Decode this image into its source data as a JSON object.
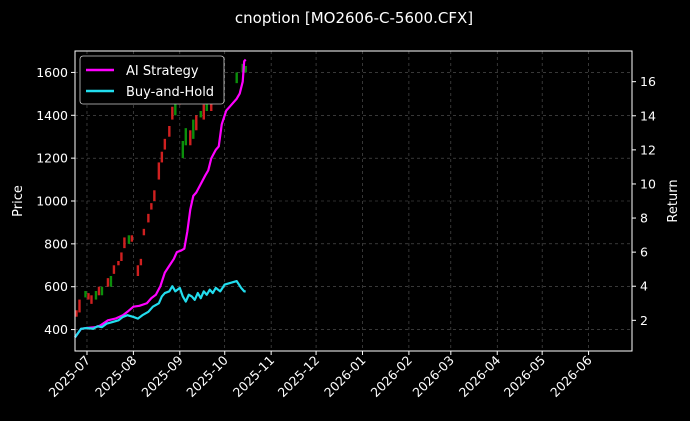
{
  "chart_data": {
    "type": "line",
    "title": "cnoption [MO2606-C-5600.CFX]",
    "ylabel_left": "Price",
    "ylabel_right": "Return",
    "xlim": [
      "2025-06-23",
      "2026-06-30"
    ],
    "ylim_left": [
      300,
      1700
    ],
    "ylim_right": [
      0.2,
      17.8
    ],
    "x_ticks": [
      "2025-07",
      "2025-08",
      "2025-09",
      "2025-10",
      "2025-11",
      "2025-12",
      "2026-01",
      "2026-02",
      "2026-03",
      "2026-04",
      "2026-05",
      "2026-06"
    ],
    "y_ticks_left": [
      400,
      600,
      800,
      1000,
      1200,
      1400,
      1600
    ],
    "y_ticks_right": [
      2,
      4,
      6,
      8,
      10,
      12,
      14,
      16
    ],
    "grid": true,
    "legend_position": "top-left",
    "series": [
      {
        "name": "AI Strategy",
        "color": "#ff00ff",
        "axis": "right",
        "points": [
          [
            "2025-06-23",
            1.0
          ],
          [
            "2025-06-27",
            1.5
          ],
          [
            "2025-07-01",
            1.55
          ],
          [
            "2025-07-07",
            1.6
          ],
          [
            "2025-07-10",
            1.7
          ],
          [
            "2025-07-15",
            2.0
          ],
          [
            "2025-07-20",
            2.1
          ],
          [
            "2025-07-25",
            2.3
          ],
          [
            "2025-07-28",
            2.5
          ],
          [
            "2025-08-01",
            2.8
          ],
          [
            "2025-08-05",
            2.85
          ],
          [
            "2025-08-10",
            3.0
          ],
          [
            "2025-08-13",
            3.3
          ],
          [
            "2025-08-16",
            3.5
          ],
          [
            "2025-08-19",
            4.0
          ],
          [
            "2025-08-22",
            4.8
          ],
          [
            "2025-08-25",
            5.2
          ],
          [
            "2025-08-28",
            5.6
          ],
          [
            "2025-08-30",
            6.0
          ],
          [
            "2025-09-02",
            6.1
          ],
          [
            "2025-09-04",
            6.2
          ],
          [
            "2025-09-06",
            7.2
          ],
          [
            "2025-09-08",
            8.5
          ],
          [
            "2025-09-10",
            9.3
          ],
          [
            "2025-09-12",
            9.5
          ],
          [
            "2025-09-15",
            10.0
          ],
          [
            "2025-09-18",
            10.5
          ],
          [
            "2025-09-20",
            10.8
          ],
          [
            "2025-09-22",
            11.5
          ],
          [
            "2025-09-25",
            12.0
          ],
          [
            "2025-09-27",
            12.2
          ],
          [
            "2025-09-29",
            13.5
          ],
          [
            "2025-10-02",
            14.3
          ],
          [
            "2025-10-05",
            14.6
          ],
          [
            "2025-10-09",
            15.0
          ],
          [
            "2025-10-11",
            15.3
          ],
          [
            "2025-10-13",
            16.0
          ],
          [
            "2025-10-14",
            17.2
          ],
          [
            "2025-10-15",
            17.3
          ]
        ]
      },
      {
        "name": "Buy-and-Hold",
        "color": "#22ddee",
        "axis": "right",
        "points": [
          [
            "2025-06-23",
            1.0
          ],
          [
            "2025-06-27",
            1.5
          ],
          [
            "2025-07-01",
            1.55
          ],
          [
            "2025-07-05",
            1.5
          ],
          [
            "2025-07-08",
            1.65
          ],
          [
            "2025-07-11",
            1.6
          ],
          [
            "2025-07-14",
            1.8
          ],
          [
            "2025-07-18",
            1.9
          ],
          [
            "2025-07-22",
            2.0
          ],
          [
            "2025-07-25",
            2.2
          ],
          [
            "2025-07-28",
            2.3
          ],
          [
            "2025-08-01",
            2.2
          ],
          [
            "2025-08-04",
            2.1
          ],
          [
            "2025-08-07",
            2.3
          ],
          [
            "2025-08-11",
            2.5
          ],
          [
            "2025-08-14",
            2.8
          ],
          [
            "2025-08-18",
            3.0
          ],
          [
            "2025-08-20",
            3.4
          ],
          [
            "2025-08-22",
            3.6
          ],
          [
            "2025-08-25",
            3.7
          ],
          [
            "2025-08-27",
            4.0
          ],
          [
            "2025-08-29",
            3.7
          ],
          [
            "2025-09-01",
            3.9
          ],
          [
            "2025-09-03",
            3.4
          ],
          [
            "2025-09-05",
            3.1
          ],
          [
            "2025-09-07",
            3.5
          ],
          [
            "2025-09-09",
            3.4
          ],
          [
            "2025-09-11",
            3.2
          ],
          [
            "2025-09-13",
            3.6
          ],
          [
            "2025-09-15",
            3.3
          ],
          [
            "2025-09-17",
            3.7
          ],
          [
            "2025-09-19",
            3.5
          ],
          [
            "2025-09-21",
            3.8
          ],
          [
            "2025-09-23",
            3.6
          ],
          [
            "2025-09-25",
            3.9
          ],
          [
            "2025-09-28",
            3.7
          ],
          [
            "2025-10-01",
            4.1
          ],
          [
            "2025-10-05",
            4.2
          ],
          [
            "2025-10-09",
            4.3
          ],
          [
            "2025-10-12",
            3.9
          ],
          [
            "2025-10-14",
            3.7
          ],
          [
            "2025-10-15",
            3.7
          ]
        ]
      }
    ],
    "candles": {
      "axis": "left",
      "up_color": "#0b8f0b",
      "down_color": "#d02020",
      "bars": [
        [
          "2025-06-24",
          490,
          460
        ],
        [
          "2025-06-26",
          540,
          480
        ],
        [
          "2025-06-30",
          550,
          580
        ],
        [
          "2025-07-02",
          570,
          540
        ],
        [
          "2025-07-04",
          560,
          520
        ],
        [
          "2025-07-07",
          540,
          580
        ],
        [
          "2025-07-09",
          600,
          560
        ],
        [
          "2025-07-11",
          560,
          600
        ],
        [
          "2025-07-15",
          640,
          600
        ],
        [
          "2025-07-17",
          600,
          650
        ],
        [
          "2025-07-19",
          700,
          660
        ],
        [
          "2025-07-22",
          720,
          700
        ],
        [
          "2025-07-24",
          760,
          720
        ],
        [
          "2025-07-26",
          830,
          780
        ],
        [
          "2025-07-29",
          800,
          840
        ],
        [
          "2025-07-31",
          840,
          810
        ],
        [
          "2025-08-04",
          700,
          650
        ],
        [
          "2025-08-06",
          730,
          700
        ],
        [
          "2025-08-08",
          870,
          840
        ],
        [
          "2025-08-11",
          940,
          900
        ],
        [
          "2025-08-13",
          990,
          960
        ],
        [
          "2025-08-15",
          1050,
          1000
        ],
        [
          "2025-08-18",
          1180,
          1100
        ],
        [
          "2025-08-20",
          1230,
          1180
        ],
        [
          "2025-08-22",
          1290,
          1240
        ],
        [
          "2025-08-25",
          1350,
          1300
        ],
        [
          "2025-08-27",
          1440,
          1380
        ],
        [
          "2025-08-29",
          1400,
          1480
        ],
        [
          "2025-09-01",
          1530,
          1450
        ],
        [
          "2025-09-03",
          1200,
          1280
        ],
        [
          "2025-09-05",
          1260,
          1340
        ],
        [
          "2025-09-08",
          1330,
          1260
        ],
        [
          "2025-09-10",
          1290,
          1380
        ],
        [
          "2025-09-12",
          1400,
          1330
        ],
        [
          "2025-09-15",
          1390,
          1420
        ],
        [
          "2025-09-17",
          1450,
          1380
        ],
        [
          "2025-09-19",
          1420,
          1460
        ],
        [
          "2025-09-22",
          1500,
          1420
        ],
        [
          "2025-09-24",
          1470,
          1520
        ],
        [
          "2025-09-26",
          1560,
          1500
        ],
        [
          "2025-09-29",
          1480,
          1540
        ],
        [
          "2025-10-09",
          1550,
          1600
        ],
        [
          "2025-10-13",
          1600,
          1640
        ],
        [
          "2025-10-15",
          1600,
          1630
        ]
      ]
    }
  }
}
